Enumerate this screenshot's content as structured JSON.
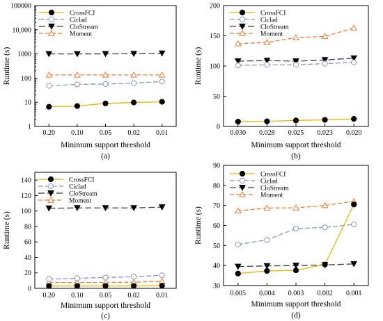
{
  "colors": {
    "CrossFCI": "#e8b400",
    "Ciclad": "#8c96b4",
    "CloStream": "#3a3a3a",
    "Moment": "#f07a32"
  },
  "chart_data": [
    {
      "type": "line",
      "panel_label": "(a)",
      "xlabel": "Minimum support threshold",
      "ylabel": "Runtime (s)",
      "categories": [
        "0.20",
        "0.10",
        "0.05",
        "0.02",
        "0.01"
      ],
      "yscale": "log",
      "ylim": [
        1,
        100000
      ],
      "yticks": [
        1,
        10,
        100,
        1000,
        10000,
        100000
      ],
      "ytick_labels": [
        "1",
        "10",
        "100",
        "1000",
        "10,000",
        "100000"
      ],
      "legend_position": "top-left",
      "series": [
        {
          "name": "CrossFCI",
          "values": [
            6.5,
            7,
            9,
            9.8,
            10.5
          ]
        },
        {
          "name": "Ciclad",
          "values": [
            48,
            55,
            57,
            62,
            72
          ]
        },
        {
          "name": "CloStream",
          "values": [
            1000,
            1000,
            1005,
            1020,
            1060
          ]
        },
        {
          "name": "Moment",
          "values": [
            135,
            135,
            135,
            135,
            135
          ]
        }
      ]
    },
    {
      "type": "line",
      "panel_label": "(b)",
      "xlabel": "Minimum support threshold",
      "ylabel": "Runtime (s)",
      "categories": [
        "0.030",
        "0.028",
        "0.025",
        "0.023",
        "0.020"
      ],
      "yscale": "linear",
      "ylim": [
        0,
        200
      ],
      "yticks": [
        0,
        50,
        100,
        150,
        200
      ],
      "ytick_labels": [
        "0",
        "50",
        "100",
        "150",
        "200"
      ],
      "legend_position": "top-left",
      "series": [
        {
          "name": "CrossFCI",
          "values": [
            8,
            8.5,
            10,
            11,
            12.5
          ]
        },
        {
          "name": "Ciclad",
          "values": [
            101,
            102,
            102,
            104,
            106
          ]
        },
        {
          "name": "CloStream",
          "values": [
            108,
            109,
            108,
            110,
            113
          ]
        },
        {
          "name": "Moment",
          "values": [
            137,
            139,
            147,
            149,
            163
          ]
        }
      ]
    },
    {
      "type": "line",
      "panel_label": "(c)",
      "xlabel": "Minimum support threshold",
      "ylabel": "Runtime (s)",
      "categories": [
        "0.20",
        "0.10",
        "0.05",
        "0.02",
        "0.01"
      ],
      "yscale": "linear",
      "ylim": [
        0,
        150
      ],
      "yticks": [
        0,
        20,
        40,
        60,
        80,
        100,
        120,
        140
      ],
      "ytick_labels": [
        "0",
        "20",
        "40",
        "60",
        "80",
        "100",
        "120",
        "140"
      ],
      "legend_position": "top-right",
      "series": [
        {
          "name": "CrossFCI",
          "values": [
            3,
            3,
            3,
            3,
            3.5
          ]
        },
        {
          "name": "Ciclad",
          "values": [
            12,
            13,
            14,
            15,
            17
          ]
        },
        {
          "name": "CloStream",
          "values": [
            103.5,
            104,
            104,
            104,
            105
          ]
        },
        {
          "name": "Moment",
          "values": [
            7.5,
            7.5,
            7.5,
            8,
            9
          ]
        }
      ]
    },
    {
      "type": "line",
      "panel_label": "(d)",
      "xlabel": "Minimum support threshold",
      "ylabel": "Runtime (s)",
      "categories": [
        "0.005",
        "0.004",
        "0.003",
        "0.002",
        "0.001"
      ],
      "yscale": "linear",
      "ylim": [
        30,
        90
      ],
      "yticks": [
        30,
        40,
        50,
        60,
        70,
        80,
        90
      ],
      "ytick_labels": [
        "30",
        "40",
        "50",
        "60",
        "70",
        "80",
        "90"
      ],
      "legend_position": "top-right",
      "series": [
        {
          "name": "CrossFCI",
          "values": [
            36,
            37.3,
            37.6,
            40.5,
            70.5
          ]
        },
        {
          "name": "Ciclad",
          "values": [
            50.5,
            52.8,
            58.5,
            59,
            60.5
          ]
        },
        {
          "name": "CloStream",
          "values": [
            39.5,
            39.8,
            40,
            40.3,
            40.8
          ]
        },
        {
          "name": "Moment",
          "values": [
            67.3,
            68.7,
            68.8,
            70,
            72
          ]
        }
      ]
    }
  ]
}
